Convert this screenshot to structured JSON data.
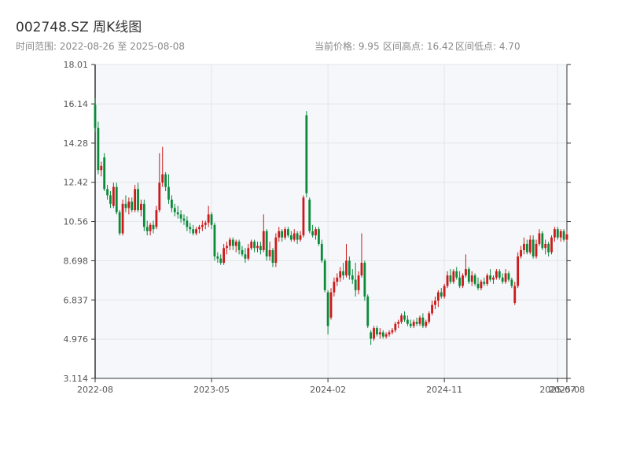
{
  "chart_data": {
    "type": "candlestick",
    "title": "002748.SZ 周K线图",
    "date_range": "时间范围: 2022-08-26 至 2025-08-08",
    "stats": [
      "当前价格: 9.95",
      "区间高点: 16.42",
      "区间低点: 4.70"
    ],
    "up_color": "#cc1a1a",
    "down_color": "#0b8a3a",
    "grid": true,
    "x": [
      "2022-08-26",
      "2022-09-02",
      "2022-09-09",
      "2022-09-16",
      "2022-09-23",
      "2022-09-30",
      "2022-10-07",
      "2022-10-14",
      "2022-10-21",
      "2022-10-28",
      "2022-11-04",
      "2022-11-11",
      "2022-11-18",
      "2022-11-25",
      "2022-12-02",
      "2022-12-09",
      "2022-12-16",
      "2022-12-23",
      "2022-12-30",
      "2023-01-06",
      "2023-01-13",
      "2023-01-20",
      "2023-01-27",
      "2023-02-03",
      "2023-02-10",
      "2023-02-17",
      "2023-02-24",
      "2023-03-03",
      "2023-03-10",
      "2023-03-17",
      "2023-03-24",
      "2023-03-31",
      "2023-04-07",
      "2023-04-14",
      "2023-04-21",
      "2023-04-28",
      "2023-05-05",
      "2023-05-12",
      "2023-05-19",
      "2023-05-26",
      "2023-06-02",
      "2023-06-09",
      "2023-06-16",
      "2023-06-23",
      "2023-06-30",
      "2023-07-07",
      "2023-07-14",
      "2023-07-21",
      "2023-07-28",
      "2023-08-04",
      "2023-08-11",
      "2023-08-18",
      "2023-08-25",
      "2023-09-01",
      "2023-09-08",
      "2023-09-15",
      "2023-09-22",
      "2023-09-29",
      "2023-10-06",
      "2023-10-13",
      "2023-10-20",
      "2023-10-27",
      "2023-11-03",
      "2023-11-10",
      "2023-11-17",
      "2023-11-24",
      "2023-12-01",
      "2023-12-08",
      "2023-12-15",
      "2023-12-22",
      "2023-12-29",
      "2024-01-05",
      "2024-01-12",
      "2024-01-19",
      "2024-01-26",
      "2024-02-02",
      "2024-02-09",
      "2024-02-16",
      "2024-02-23",
      "2024-03-01",
      "2024-03-08",
      "2024-03-15",
      "2024-03-22",
      "2024-03-29",
      "2024-04-05",
      "2024-04-12",
      "2024-04-19",
      "2024-04-26",
      "2024-05-03",
      "2024-05-10",
      "2024-05-17",
      "2024-05-24",
      "2024-05-31",
      "2024-06-07",
      "2024-06-14",
      "2024-06-21",
      "2024-06-28",
      "2024-07-05",
      "2024-07-12",
      "2024-07-19",
      "2024-07-26",
      "2024-08-02",
      "2024-08-09",
      "2024-08-16",
      "2024-08-23",
      "2024-08-30",
      "2024-09-06",
      "2024-09-13",
      "2024-09-20",
      "2024-09-27",
      "2024-10-04",
      "2024-10-11",
      "2024-10-18",
      "2024-10-25",
      "2024-11-01",
      "2024-11-08",
      "2024-11-15",
      "2024-11-22",
      "2024-11-29",
      "2024-12-06",
      "2024-12-13",
      "2024-12-20",
      "2024-12-27",
      "2025-01-03",
      "2025-01-10",
      "2025-01-17",
      "2025-01-24",
      "2025-01-31",
      "2025-02-07",
      "2025-02-14",
      "2025-02-21",
      "2025-02-28",
      "2025-03-07",
      "2025-03-14",
      "2025-03-21",
      "2025-03-28",
      "2025-04-04",
      "2025-04-11",
      "2025-04-18",
      "2025-04-25",
      "2025-05-02",
      "2025-05-09",
      "2025-05-16",
      "2025-05-23",
      "2025-05-30",
      "2025-06-06",
      "2025-06-13",
      "2025-06-20",
      "2025-06-27",
      "2025-07-04",
      "2025-07-11",
      "2025-07-18",
      "2025-07-25",
      "2025-08-01",
      "2025-08-08"
    ],
    "open": [
      16.1,
      15.0,
      13.0,
      13.6,
      12.1,
      11.8,
      11.3,
      12.2,
      11.0,
      10.0,
      11.4,
      11.2,
      11.5,
      11.1,
      12.1,
      11.1,
      11.4,
      10.3,
      10.1,
      10.4,
      10.3,
      11.1,
      12.4,
      12.8,
      12.2,
      11.6,
      11.2,
      11.0,
      10.9,
      10.7,
      10.6,
      10.3,
      10.2,
      10.0,
      10.2,
      10.3,
      10.4,
      10.5,
      10.9,
      10.4,
      8.9,
      8.8,
      8.6,
      9.3,
      9.4,
      9.7,
      9.4,
      9.6,
      9.2,
      9.0,
      8.8,
      9.3,
      9.6,
      9.3,
      9.4,
      9.2,
      10.1,
      8.9,
      9.2,
      8.6,
      9.8,
      10.1,
      9.8,
      10.2,
      9.9,
      9.7,
      10.0,
      9.7,
      9.9,
      15.6,
      11.6,
      10.1,
      9.9,
      10.2,
      9.5,
      8.7,
      7.2,
      6.0,
      7.2,
      7.7,
      7.9,
      8.2,
      8.0,
      8.7,
      8.0,
      7.8,
      7.3,
      8.0,
      8.6,
      7.0,
      5.3,
      5.0,
      5.5,
      5.2,
      5.3,
      5.1,
      5.2,
      5.3,
      5.4,
      5.7,
      5.8,
      6.1,
      5.9,
      5.7,
      5.6,
      5.8,
      5.7,
      6.0,
      5.6,
      5.8,
      6.2,
      6.6,
      6.8,
      7.2,
      7.0,
      7.5,
      8.0,
      7.7,
      8.2,
      7.9,
      7.5,
      8.0,
      8.3,
      7.7,
      8.0,
      7.6,
      7.4,
      7.7,
      7.6,
      8.0,
      7.8,
      7.9,
      8.2,
      7.9,
      7.7,
      8.1,
      7.8,
      6.7,
      7.5,
      8.9,
      9.2,
      9.5,
      9.1,
      9.7,
      8.9,
      9.5,
      10.0,
      9.3,
      9.5,
      9.1,
      9.8,
      10.2,
      9.8,
      10.1,
      9.7
    ],
    "high": [
      16.42,
      15.3,
      13.4,
      13.8,
      12.3,
      12.0,
      12.4,
      12.4,
      11.1,
      11.6,
      11.8,
      11.7,
      11.7,
      12.3,
      12.4,
      11.6,
      11.6,
      10.6,
      10.5,
      10.6,
      11.3,
      13.8,
      14.1,
      12.9,
      12.8,
      11.8,
      11.4,
      11.3,
      11.1,
      10.9,
      10.8,
      10.5,
      10.4,
      10.3,
      10.4,
      10.6,
      10.6,
      11.3,
      11.0,
      10.5,
      9.1,
      9.0,
      9.5,
      9.6,
      9.8,
      9.8,
      9.7,
      9.7,
      9.4,
      9.3,
      9.5,
      9.7,
      9.7,
      9.6,
      9.6,
      10.9,
      10.2,
      9.6,
      9.3,
      10.0,
      10.3,
      10.2,
      10.3,
      10.3,
      10.1,
      10.2,
      10.1,
      10.1,
      11.8,
      15.8,
      11.7,
      10.4,
      10.3,
      10.3,
      9.7,
      8.8,
      7.3,
      7.4,
      7.9,
      8.1,
      8.4,
      8.6,
      9.5,
      8.9,
      8.3,
      8.6,
      8.2,
      10.0,
      8.7,
      7.1,
      5.4,
      5.6,
      5.6,
      5.5,
      5.4,
      5.3,
      5.4,
      5.5,
      5.8,
      5.9,
      6.2,
      6.3,
      6.1,
      5.9,
      5.9,
      6.0,
      6.1,
      6.2,
      5.9,
      6.3,
      6.8,
      7.0,
      7.3,
      7.4,
      7.6,
      8.2,
      8.3,
      8.3,
      8.4,
      8.2,
      8.1,
      9.0,
      8.4,
      8.2,
      8.1,
      7.9,
      7.8,
      7.9,
      8.1,
      8.3,
      8.0,
      8.3,
      8.3,
      8.1,
      8.3,
      8.2,
      7.9,
      7.7,
      9.1,
      9.4,
      9.8,
      9.7,
      9.9,
      9.9,
      9.7,
      10.2,
      10.1,
      9.7,
      9.6,
      9.9,
      10.3,
      10.3,
      10.2,
      10.2,
      10.1
    ],
    "low": [
      14.8,
      12.8,
      12.7,
      12.0,
      11.6,
      11.2,
      11.2,
      10.9,
      9.9,
      9.9,
      11.0,
      10.9,
      11.0,
      11.0,
      11.0,
      10.8,
      10.1,
      9.9,
      9.9,
      10.0,
      10.2,
      11.0,
      12.2,
      12.0,
      11.4,
      11.0,
      10.8,
      10.7,
      10.5,
      10.4,
      10.1,
      10.0,
      9.9,
      9.9,
      10.0,
      10.1,
      10.2,
      10.3,
      10.2,
      8.7,
      8.6,
      8.5,
      8.5,
      9.0,
      9.2,
      9.2,
      9.1,
      9.0,
      8.9,
      8.6,
      8.7,
      9.2,
      9.1,
      9.1,
      9.0,
      9.1,
      8.7,
      8.7,
      8.4,
      8.4,
      9.6,
      9.6,
      9.7,
      9.8,
      9.6,
      9.6,
      9.5,
      9.6,
      9.8,
      11.7,
      10.0,
      9.8,
      9.7,
      9.4,
      8.6,
      7.2,
      5.2,
      5.9,
      7.0,
      7.5,
      7.7,
      7.8,
      7.9,
      7.8,
      7.6,
      7.0,
      7.1,
      7.9,
      6.8,
      5.5,
      4.7,
      4.9,
      5.1,
      5.0,
      5.0,
      5.0,
      5.1,
      5.2,
      5.3,
      5.5,
      5.7,
      5.8,
      5.6,
      5.5,
      5.5,
      5.6,
      5.6,
      5.5,
      5.5,
      5.7,
      6.1,
      6.4,
      6.5,
      6.9,
      6.9,
      7.4,
      7.6,
      7.6,
      7.8,
      7.4,
      7.4,
      7.9,
      7.6,
      7.5,
      7.5,
      7.3,
      7.3,
      7.5,
      7.5,
      7.7,
      7.6,
      7.8,
      7.8,
      7.6,
      7.6,
      7.7,
      7.4,
      6.6,
      7.4,
      8.8,
      9.0,
      9.0,
      9.0,
      8.8,
      8.8,
      9.4,
      9.2,
      9.0,
      8.9,
      9.0,
      9.6,
      9.7,
      9.6,
      9.6,
      9.6
    ],
    "close": [
      15.0,
      13.0,
      13.2,
      12.1,
      11.8,
      11.4,
      12.2,
      11.0,
      10.0,
      11.4,
      11.2,
      11.5,
      11.1,
      12.1,
      11.1,
      11.4,
      10.3,
      10.1,
      10.4,
      10.2,
      11.1,
      12.4,
      12.8,
      12.2,
      11.6,
      11.2,
      11.0,
      10.9,
      10.7,
      10.6,
      10.3,
      10.2,
      10.0,
      10.2,
      10.3,
      10.4,
      10.5,
      10.9,
      10.4,
      8.9,
      8.8,
      8.6,
      9.3,
      9.4,
      9.7,
      9.4,
      9.6,
      9.2,
      9.0,
      8.8,
      9.3,
      9.6,
      9.3,
      9.4,
      9.2,
      10.1,
      8.9,
      9.2,
      8.6,
      9.8,
      10.1,
      9.8,
      10.2,
      9.9,
      9.7,
      10.0,
      9.7,
      9.9,
      11.7,
      11.9,
      10.1,
      9.9,
      10.2,
      9.5,
      8.7,
      7.3,
      5.6,
      7.2,
      7.7,
      7.9,
      8.2,
      8.0,
      8.7,
      8.0,
      7.8,
      7.3,
      8.0,
      8.6,
      7.0,
      5.6,
      5.0,
      5.5,
      5.2,
      5.3,
      5.1,
      5.2,
      5.3,
      5.4,
      5.7,
      5.8,
      6.1,
      5.9,
      5.7,
      5.6,
      5.8,
      5.7,
      6.0,
      5.6,
      5.8,
      6.2,
      6.6,
      6.8,
      7.2,
      7.0,
      7.5,
      8.0,
      7.7,
      8.2,
      7.9,
      7.5,
      8.0,
      8.3,
      7.7,
      8.0,
      7.6,
      7.4,
      7.7,
      7.6,
      8.0,
      7.8,
      7.9,
      8.2,
      7.9,
      7.7,
      8.1,
      7.8,
      7.5,
      7.5,
      8.9,
      9.2,
      9.5,
      9.1,
      9.7,
      8.9,
      9.5,
      10.0,
      9.3,
      9.5,
      9.1,
      9.8,
      10.2,
      9.8,
      10.1,
      9.7,
      9.95
    ],
    "xlim": [
      "2022-08-26",
      "2025-08-08"
    ],
    "xticks": [
      {
        "value": "2022-08-26",
        "label": "2022-08"
      },
      {
        "value": "2023-05-19",
        "label": "2023-05"
      },
      {
        "value": "2024-02-09",
        "label": "2024-02"
      },
      {
        "value": "2024-11-01",
        "label": "2024-11"
      },
      {
        "value": "2025-07-18",
        "label": "2025-07"
      },
      {
        "value": "2025-08-08",
        "label": "2025-08"
      }
    ],
    "ylim": [
      3.114,
      18.01
    ],
    "yticks": [
      3.114,
      4.976,
      6.837,
      8.698,
      10.56,
      12.42,
      14.28,
      16.14,
      18.01
    ]
  }
}
